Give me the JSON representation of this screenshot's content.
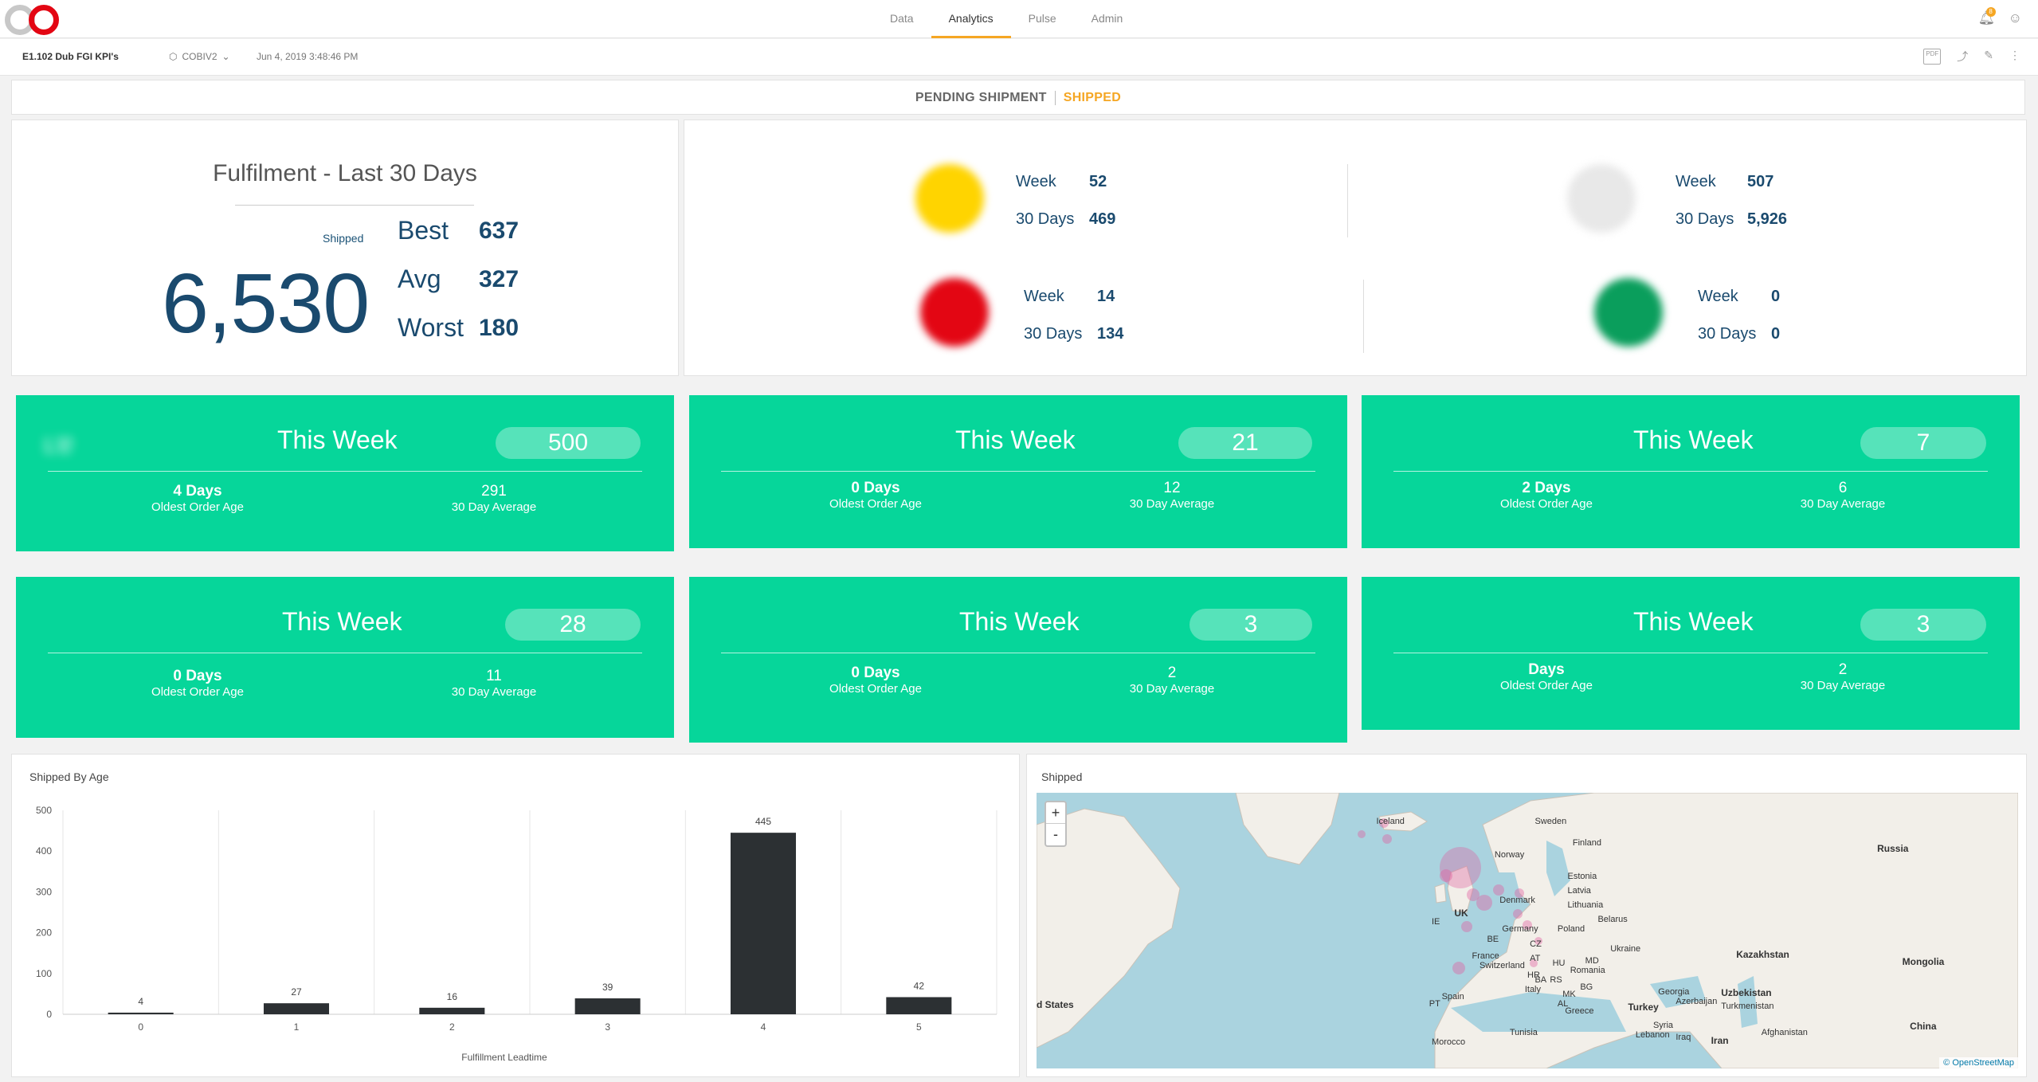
{
  "nav": {
    "items": [
      "Data",
      "Analytics",
      "Pulse",
      "Admin"
    ],
    "active": "Analytics"
  },
  "notifications": {
    "count": "8"
  },
  "subbar": {
    "title": "E1.102 Dub FGI KPI's",
    "datasource": "COBIV2",
    "timestamp": "Jun 4, 2019 3:48:46 PM"
  },
  "tabs": {
    "pending": "PENDING SHIPMENT",
    "shipped": "SHIPPED"
  },
  "fulfilment": {
    "title": "Fulfilment - Last 30 Days",
    "shipped_label": "Shipped",
    "total": "6,530",
    "best_label": "Best",
    "best": "637",
    "avg_label": "Avg",
    "avg": "327",
    "worst_label": "Worst",
    "worst": "180"
  },
  "carriers": [
    {
      "logo_color": "#ffd400",
      "week_label": "Week",
      "week": "52",
      "days_label": "30 Days",
      "days": "469"
    },
    {
      "logo_color": "#e8e8e8",
      "week_label": "Week",
      "week": "507",
      "days_label": "30 Days",
      "days": "5,926"
    },
    {
      "logo_color": "#e30613",
      "week_label": "Week",
      "week": "14",
      "days_label": "30 Days",
      "days": "134"
    },
    {
      "logo_color": "#0a9e5c",
      "week_label": "Week",
      "week": "0",
      "days_label": "30 Days",
      "days": "0"
    }
  ],
  "cards": [
    {
      "logo_text": "ʟɐ",
      "week_label": "This Week",
      "count": "500",
      "oldest": "4 Days",
      "oldest_label": "Oldest Order Age",
      "avg": "291",
      "avg_label": "30 Day Average"
    },
    {
      "logo_text": "     ",
      "week_label": "This Week",
      "count": "21",
      "oldest": "0 Days",
      "oldest_label": "Oldest Order Age",
      "avg": "12",
      "avg_label": "30 Day Average"
    },
    {
      "logo_text": "     ",
      "week_label": "This Week",
      "count": "7",
      "oldest": "2 Days",
      "oldest_label": "Oldest Order Age",
      "avg": "6",
      "avg_label": "30 Day Average"
    },
    {
      "logo_text": "   ",
      "week_label": "This Week",
      "count": "28",
      "oldest": "0 Days",
      "oldest_label": "Oldest Order Age",
      "avg": "11",
      "avg_label": "30 Day Average"
    },
    {
      "logo_text": " ",
      "week_label": "This Week",
      "count": "3",
      "oldest": "0 Days",
      "oldest_label": "Oldest Order Age",
      "avg": "2",
      "avg_label": "30 Day Average"
    },
    {
      "logo_text": "    ",
      "week_label": "This Week",
      "count": "3",
      "oldest": "Days",
      "oldest_label": "Oldest Order Age",
      "avg": "2",
      "avg_label": "30 Day Average"
    }
  ],
  "chart_title": "Shipped By Age",
  "chart_data": {
    "type": "bar",
    "categories": [
      "0",
      "1",
      "2",
      "3",
      "4",
      "5"
    ],
    "values": [
      4,
      27,
      16,
      39,
      445,
      42
    ],
    "xlabel": "Fulfillment Leadtime",
    "ylabel": "",
    "ylim": [
      0,
      500
    ],
    "yticks": [
      0,
      100,
      200,
      300,
      400,
      500
    ],
    "bar_color": "#2c3033",
    "grid": "vertical"
  },
  "map": {
    "title": "Shipped",
    "zoom_in": "+",
    "zoom_out": "-",
    "attribution": "© OpenStreetMap",
    "labels": [
      "Iceland",
      "Sweden",
      "Finland",
      "Norway",
      "Russia",
      "Estonia",
      "Latvia",
      "Lithuania",
      "Denmark",
      "Belarus",
      "UK",
      "IE",
      "Germany",
      "Poland",
      "BE",
      "CZ",
      "Ukraine",
      "France",
      "AT",
      "HU",
      "MD",
      "Switzerland",
      "HR",
      "RS",
      "Romania",
      "BA",
      "Kazakhstan",
      "Mongolia",
      "Italy",
      "MK",
      "BG",
      "Spain",
      "PT",
      "Georgia",
      "Azerbaijan",
      "Uzbekistan",
      "Turkmenistan",
      "Turkey",
      "Greece",
      "d States",
      "Syria",
      "Tunisia",
      "Lebanon",
      "Iraq",
      "Iran",
      "Afghanistan",
      "China",
      "Morocco",
      "AL"
    ]
  }
}
